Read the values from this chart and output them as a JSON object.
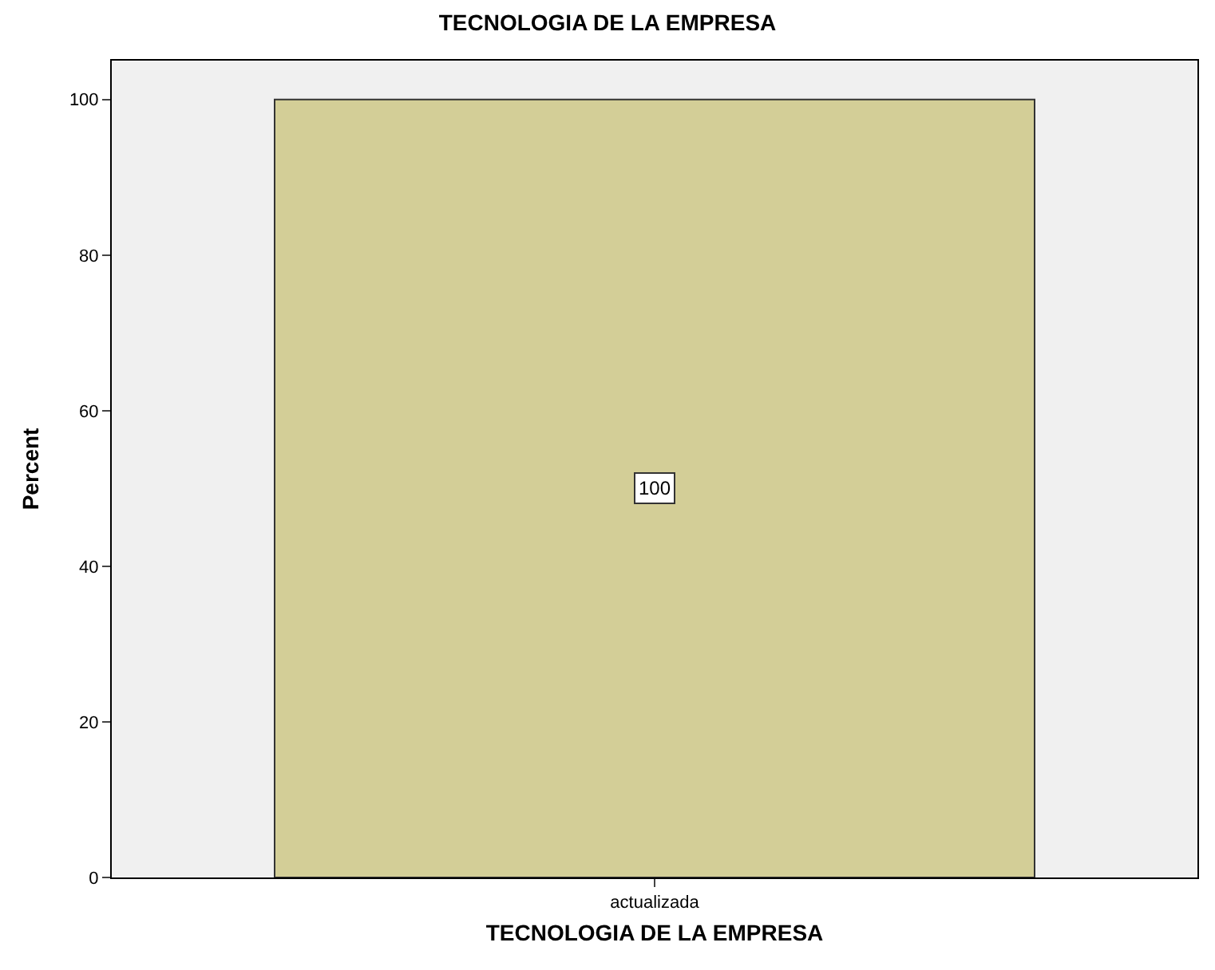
{
  "chart_data": {
    "type": "bar",
    "title": "TECNOLOGIA DE LA EMPRESA",
    "xlabel": "TECNOLOGIA DE LA EMPRESA",
    "ylabel": "Percent",
    "categories": [
      "actualizada"
    ],
    "values": [
      100
    ],
    "color": "#d3ce97",
    "ylim": [
      0,
      105
    ],
    "yticks": [
      0,
      20,
      40,
      60,
      80,
      100
    ],
    "grid": false,
    "data_labels": true
  }
}
